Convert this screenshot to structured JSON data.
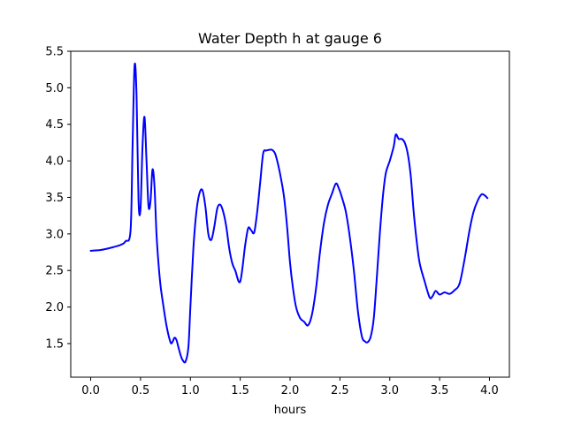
{
  "chart_data": {
    "type": "line",
    "title": "Water Depth h at gauge 6",
    "xlabel": "hours",
    "ylabel": "",
    "xlim": [
      -0.2,
      4.2
    ],
    "ylim": [
      1.04,
      5.5
    ],
    "x_ticks": [
      "0.0",
      "0.5",
      "1.0",
      "1.5",
      "2.0",
      "2.5",
      "3.0",
      "3.5",
      "4.0"
    ],
    "y_ticks": [
      "1.5",
      "2.0",
      "2.5",
      "3.0",
      "3.5",
      "4.0",
      "4.5",
      "5.0",
      "5.5"
    ],
    "grid": false,
    "legend": "none",
    "series": [
      {
        "color": "#0000ff",
        "x": [
          0.0,
          0.1,
          0.2,
          0.3,
          0.35,
          0.4,
          0.42,
          0.44,
          0.46,
          0.48,
          0.5,
          0.52,
          0.54,
          0.56,
          0.58,
          0.6,
          0.62,
          0.64,
          0.66,
          0.68,
          0.7,
          0.72,
          0.76,
          0.8,
          0.82,
          0.84,
          0.86,
          0.88,
          0.9,
          0.92,
          0.95,
          0.98,
          1.0,
          1.03,
          1.06,
          1.09,
          1.12,
          1.15,
          1.18,
          1.21,
          1.24,
          1.27,
          1.3,
          1.33,
          1.36,
          1.39,
          1.42,
          1.45,
          1.5,
          1.55,
          1.58,
          1.61,
          1.64,
          1.67,
          1.7,
          1.73,
          1.76,
          1.79,
          1.82,
          1.85,
          1.88,
          1.91,
          1.94,
          1.97,
          2.0,
          2.03,
          2.06,
          2.1,
          2.14,
          2.18,
          2.22,
          2.26,
          2.3,
          2.34,
          2.38,
          2.42,
          2.46,
          2.49,
          2.52,
          2.56,
          2.6,
          2.64,
          2.68,
          2.72,
          2.75,
          2.78,
          2.81,
          2.84,
          2.87,
          2.9,
          2.93,
          2.96,
          3.0,
          3.04,
          3.06,
          3.09,
          3.12,
          3.15,
          3.18,
          3.21,
          3.24,
          3.27,
          3.3,
          3.35,
          3.4,
          3.43,
          3.46,
          3.5,
          3.55,
          3.6,
          3.65,
          3.7,
          3.75,
          3.8,
          3.84,
          3.88,
          3.92,
          3.95,
          3.98
        ],
        "y": [
          2.77,
          2.78,
          2.81,
          2.85,
          2.9,
          3.05,
          4.2,
          5.3,
          4.9,
          3.45,
          3.35,
          4.2,
          4.6,
          4.0,
          3.38,
          3.45,
          3.88,
          3.65,
          3.0,
          2.6,
          2.3,
          2.1,
          1.75,
          1.52,
          1.52,
          1.58,
          1.55,
          1.45,
          1.35,
          1.28,
          1.25,
          1.45,
          2.0,
          2.8,
          3.3,
          3.55,
          3.6,
          3.38,
          3.0,
          2.92,
          3.1,
          3.35,
          3.4,
          3.3,
          3.1,
          2.8,
          2.6,
          2.5,
          2.35,
          2.85,
          3.08,
          3.05,
          3.02,
          3.3,
          3.7,
          4.1,
          4.14,
          4.15,
          4.15,
          4.1,
          3.95,
          3.75,
          3.5,
          3.1,
          2.6,
          2.25,
          2.0,
          1.85,
          1.8,
          1.75,
          1.9,
          2.25,
          2.75,
          3.15,
          3.4,
          3.55,
          3.69,
          3.62,
          3.5,
          3.3,
          2.95,
          2.5,
          1.95,
          1.6,
          1.53,
          1.52,
          1.6,
          1.85,
          2.4,
          3.0,
          3.5,
          3.83,
          4.0,
          4.2,
          4.36,
          4.3,
          4.3,
          4.25,
          4.1,
          3.8,
          3.3,
          2.9,
          2.6,
          2.35,
          2.13,
          2.15,
          2.22,
          2.17,
          2.2,
          2.18,
          2.23,
          2.32,
          2.65,
          3.05,
          3.3,
          3.45,
          3.54,
          3.53,
          3.49
        ]
      }
    ]
  }
}
